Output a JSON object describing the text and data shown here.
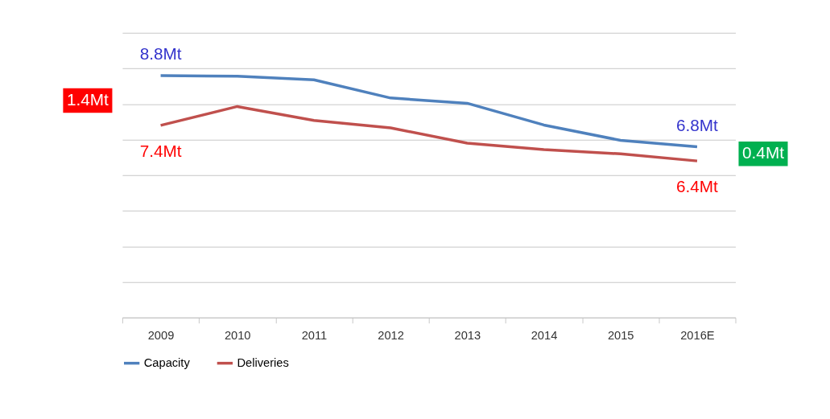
{
  "chart_data": {
    "type": "line",
    "categories": [
      "2009",
      "2010",
      "2011",
      "2012",
      "2013",
      "2014",
      "2015",
      "2016E"
    ],
    "series": [
      {
        "name": "Capacity",
        "color": "#4f81bd",
        "values": [
          8.8,
          8.78,
          8.68,
          8.17,
          8.02,
          7.41,
          6.98,
          6.8
        ],
        "value_labels": [
          "8.8Mt",
          null,
          null,
          null,
          null,
          null,
          null,
          "6.8Mt"
        ]
      },
      {
        "name": "Deliveries",
        "color": "#c0504d",
        "values": [
          7.4,
          7.93,
          7.54,
          7.33,
          6.9,
          6.72,
          6.6,
          6.4
        ],
        "value_labels": [
          "7.4Mt",
          null,
          null,
          null,
          null,
          null,
          null,
          "6.4Mt"
        ]
      }
    ],
    "ylim": [
      2,
      10
    ],
    "yticks": [
      {
        "value": 2,
        "label": null
      },
      {
        "value": 3,
        "label": null
      },
      {
        "value": 4,
        "label": null
      },
      {
        "value": 5,
        "label": null
      },
      {
        "value": 6,
        "label": null
      },
      {
        "value": 7,
        "label": null
      },
      {
        "value": 8,
        "label": null
      },
      {
        "value": 9,
        "label": null
      },
      {
        "value": 10,
        "label": null
      }
    ],
    "tick_labels": "x",
    "grid": "y",
    "legend": "bottom",
    "marker": "none",
    "line_style": "solid",
    "annotations": [
      "1.4Mt",
      "0.4Mt"
    ]
  }
}
